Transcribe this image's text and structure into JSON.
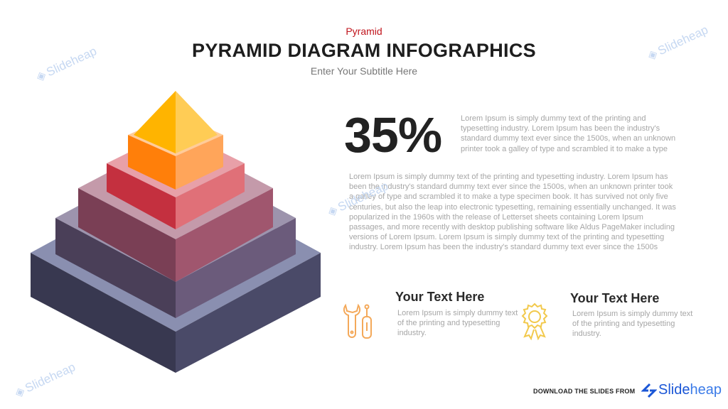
{
  "header": {
    "kicker": "Pyramid",
    "title": "PYRAMID DIAGRAM INFOGRAPHICS",
    "subtitle": "Enter Your Subtitle Here"
  },
  "stat": {
    "value": "35%",
    "text": "Lorem Ipsum is simply dummy text of the printing and typesetting industry. Lorem Ipsum has been the industry's standard dummy text ever since the 1500s, when an unknown printer took a galley of type and scrambled it to make a type"
  },
  "body_text": "Lorem Ipsum is simply dummy text of the printing and typesetting industry. Lorem Ipsum has been the industry's standard dummy text ever since the 1500s, when an unknown printer took a galley of type and scrambled it to make a type specimen book. It has survived not only five centuries, but also the leap into electronic typesetting, remaining essentially unchanged. It was popularized in the 1960s with the release of Letterset sheets containing Lorem Ipsum passages, and more recently with desktop publishing software like Aldus PageMaker including versions of Lorem Ipsum. Lorem Ipsum is simply dummy text of the printing and typesetting industry. Lorem Ipsum has been the industry's standard dummy text ever since the 1500s",
  "features": [
    {
      "icon": "tools-icon",
      "title": "Your Text Here",
      "text": "Lorem Ipsum is simply dummy text of the printing and typesetting industry.",
      "color": "#f4a95a"
    },
    {
      "icon": "award-ribbon-icon",
      "title": "Your Text Here",
      "text": "Lorem Ipsum is simply dummy text of the printing and typesetting industry.",
      "color": "#f2c94c"
    }
  ],
  "pyramid": {
    "tiers": [
      {
        "left": "#383850",
        "right": "#4a4a68",
        "top": "#8a8fb0"
      },
      {
        "left": "#4a3f58",
        "right": "#6b5b7b",
        "top": "#9d94ad"
      },
      {
        "left": "#7a3f55",
        "right": "#a0566e",
        "top": "#c49aaa"
      },
      {
        "left": "#c4303f",
        "right": "#e07078",
        "top": "#e8a0a8"
      },
      {
        "left": "#ff7f0a",
        "right": "#ffa55a",
        "top": "#ffcc99"
      }
    ],
    "apex": {
      "left": "#ffb400",
      "right": "#ffcc55"
    }
  },
  "footer": {
    "download": "DOWNLOAD THE SLIDES FROM",
    "brand_a": "Slide",
    "brand_b": "heap"
  },
  "watermark": "Slideheap"
}
